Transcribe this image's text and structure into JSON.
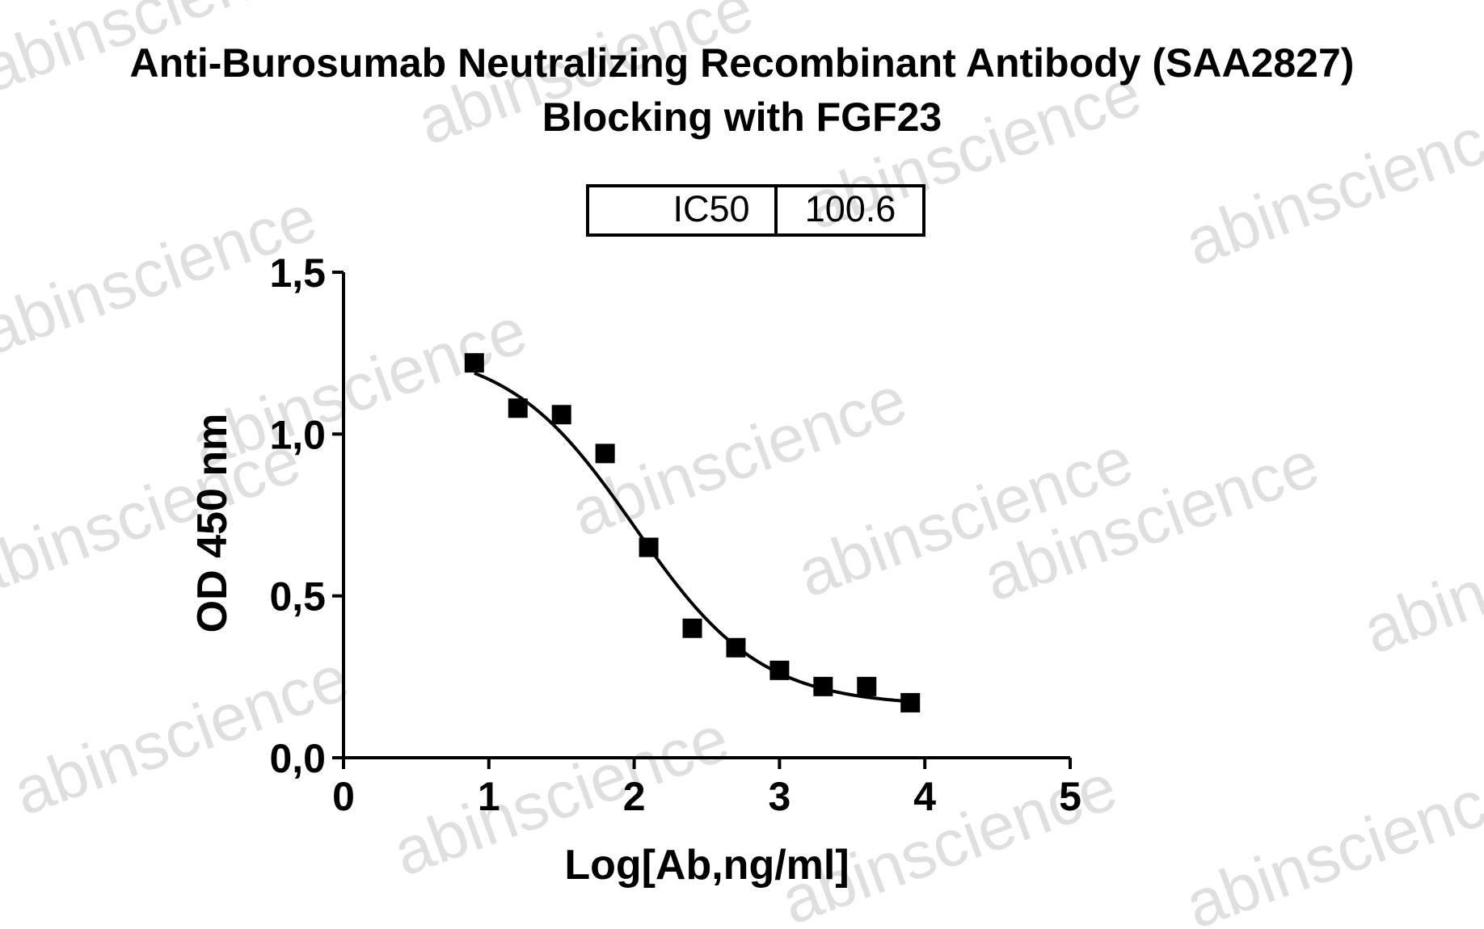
{
  "chart_data": {
    "type": "scatter",
    "title_lines": [
      "Anti-Burosumab Neutralizing Recombinant Antibody (SAA2827)",
      "Blocking with FGF23"
    ],
    "xlabel": "Log[Ab,ng/ml]",
    "ylabel": "OD 450 nm",
    "xlim": [
      0,
      5
    ],
    "ylim": [
      0,
      1.5
    ],
    "x_ticks": [
      0,
      1,
      2,
      3,
      4,
      5
    ],
    "x_tick_labels": [
      "0",
      "1",
      "2",
      "3",
      "4",
      "5"
    ],
    "y_ticks": [
      0,
      0.5,
      1.0,
      1.5
    ],
    "y_tick_labels": [
      "0,0",
      "0,5",
      "1,0",
      "1,5"
    ],
    "grid": false,
    "series": [
      {
        "marker": "square",
        "color": "#000000",
        "x": [
          0.9,
          1.2,
          1.5,
          1.8,
          2.1,
          2.4,
          2.7,
          3.0,
          3.3,
          3.6,
          3.9
        ],
        "y": [
          1.22,
          1.08,
          1.06,
          0.94,
          0.65,
          0.4,
          0.34,
          0.27,
          0.22,
          0.22,
          0.17
        ]
      }
    ],
    "fit": {
      "model": "four-parameter logistic",
      "top": 1.27,
      "bottom": 0.16,
      "log_ic50": 2.0,
      "hill_slope": 1.0,
      "x_range": [
        0.9,
        3.9
      ],
      "color": "#000000"
    },
    "ic50_table": {
      "label": "IC50",
      "value": "100.6"
    }
  },
  "watermark": {
    "text": "abinscience",
    "color": "#c4c4c4"
  }
}
